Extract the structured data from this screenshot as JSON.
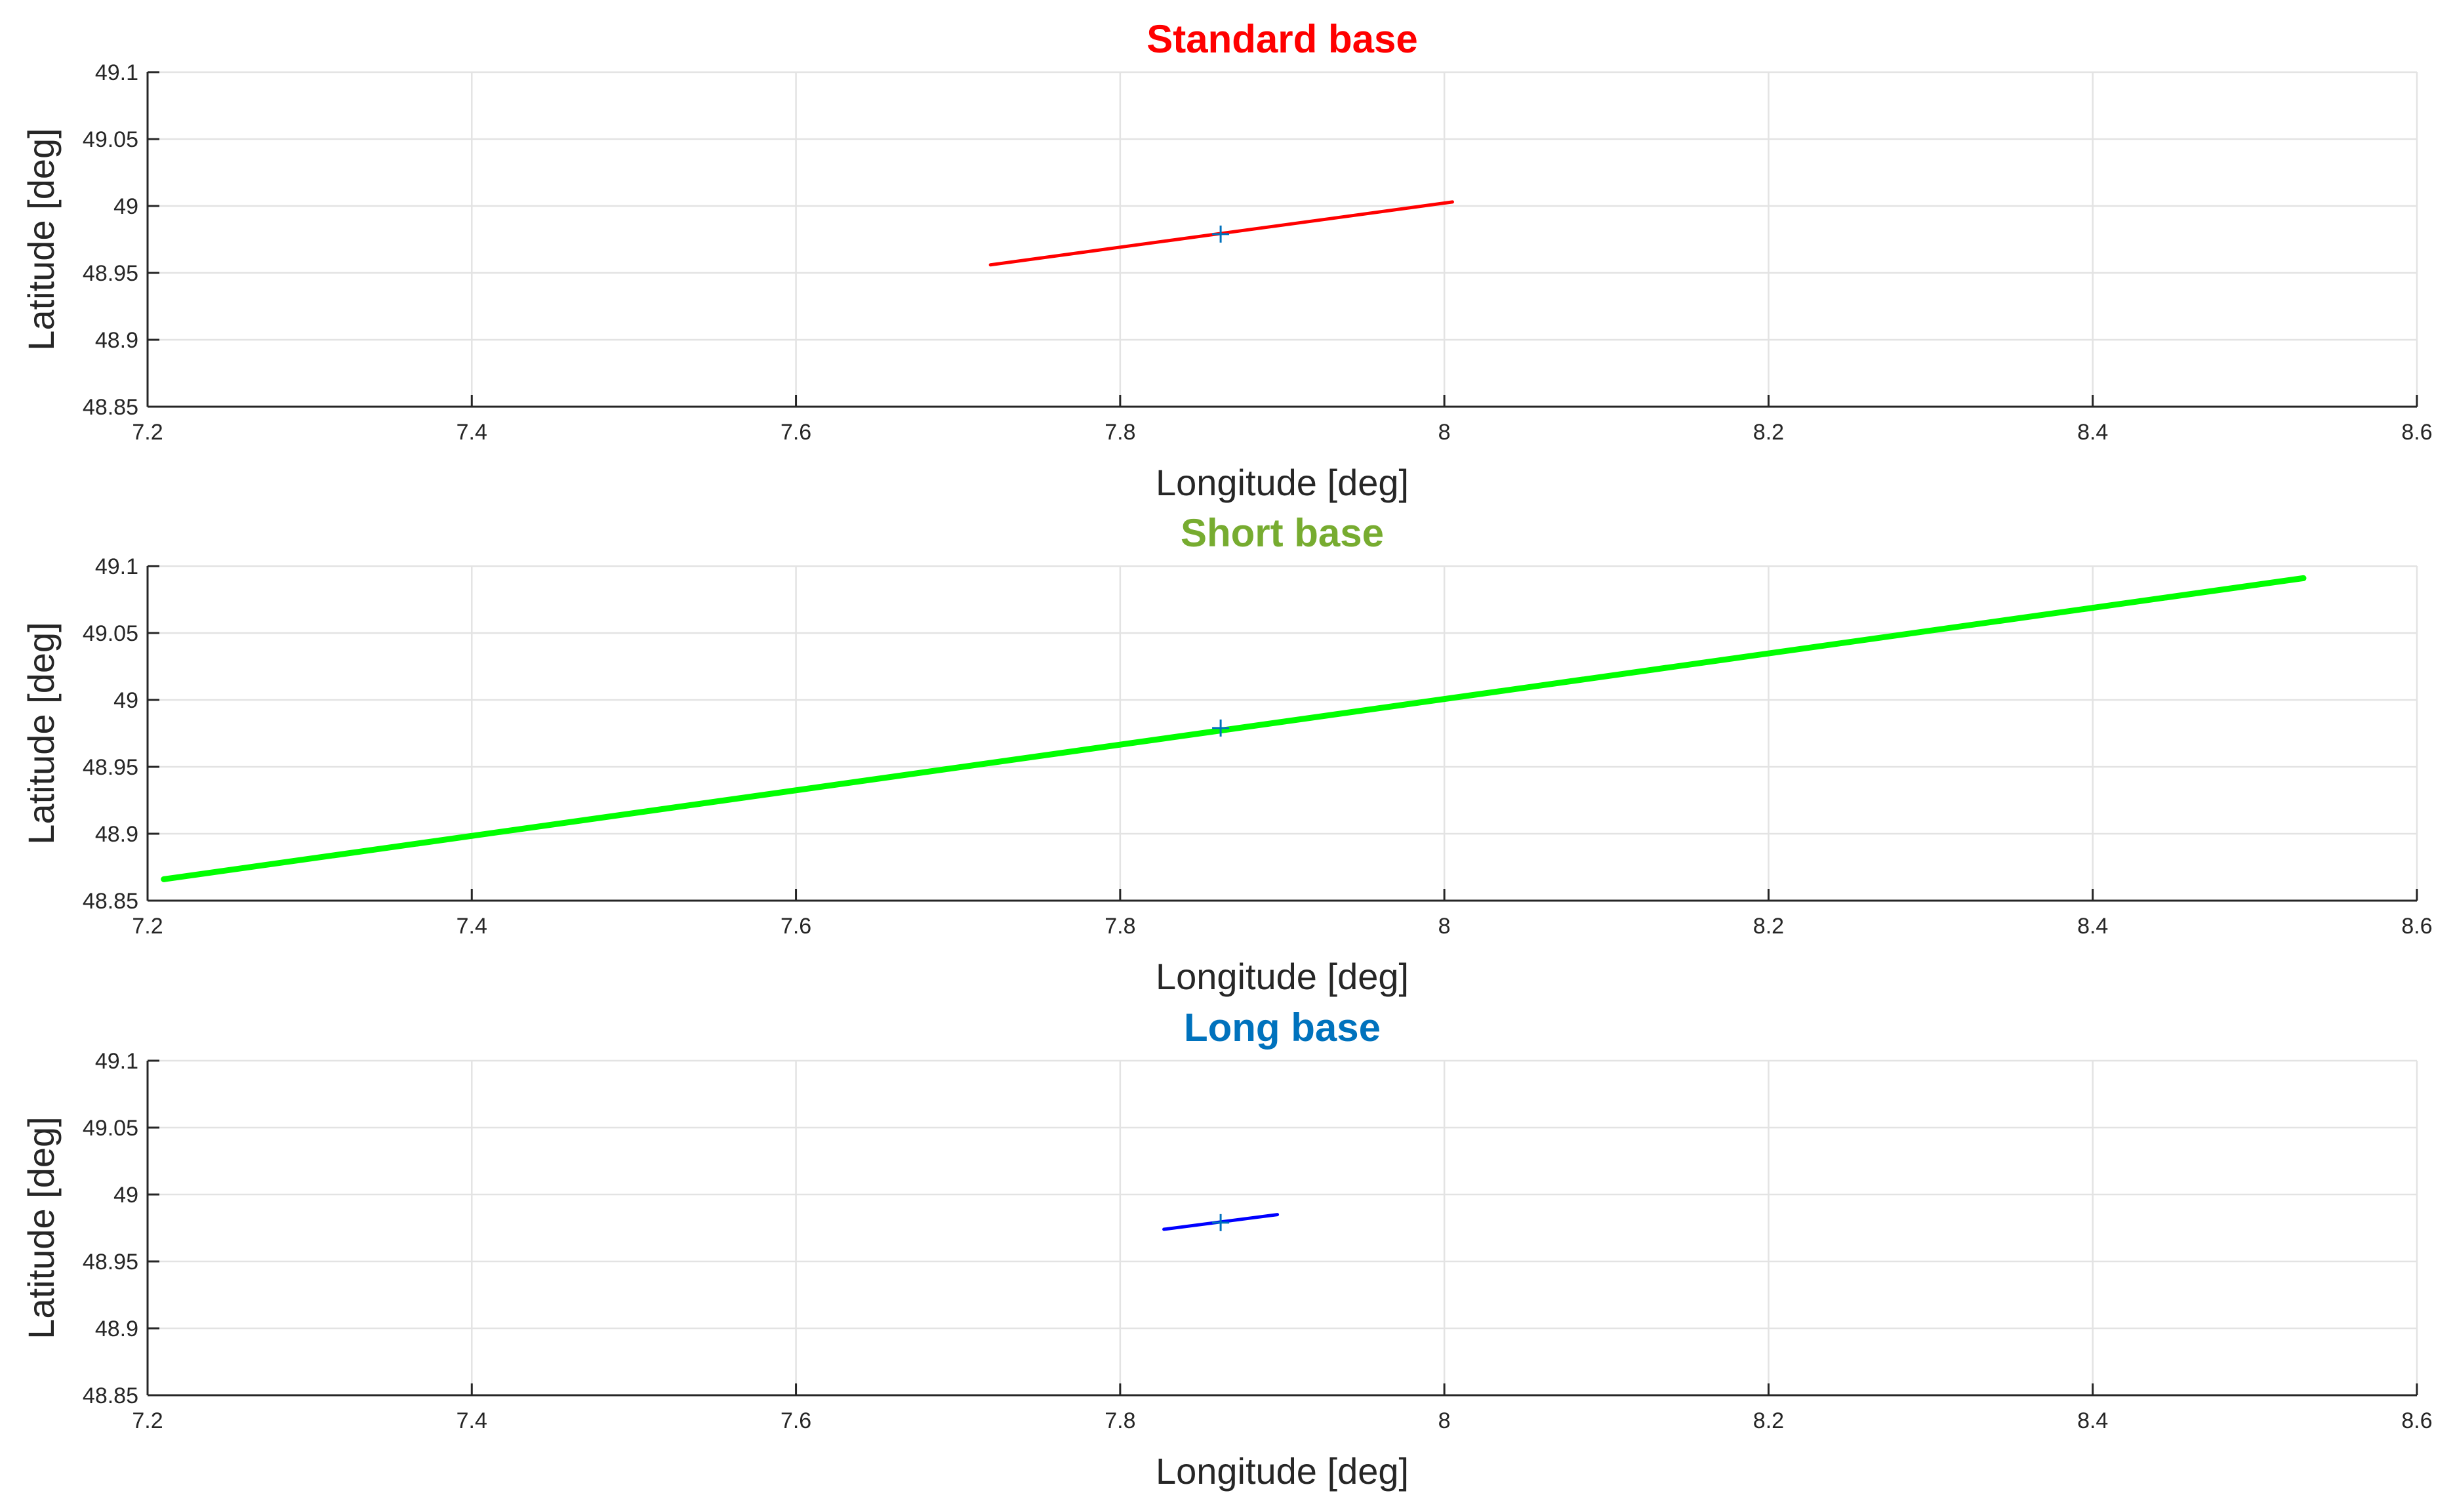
{
  "chart_data": [
    {
      "type": "line",
      "title": "Standard base",
      "title_color": "#ff0000",
      "xlabel": "Longitude [deg]",
      "ylabel": "Latitude [deg]",
      "xlim": [
        7.2,
        8.6
      ],
      "ylim": [
        48.85,
        49.1
      ],
      "xticks": [
        "7.2",
        "7.4",
        "7.6",
        "7.8",
        "8",
        "8.2",
        "8.4",
        "8.6"
      ],
      "yticks": [
        "48.85",
        "48.9",
        "48.95",
        "49",
        "49.05",
        "49.1"
      ],
      "grid": true,
      "series": [
        {
          "color": "#ff0000",
          "x": [
            7.72,
            8.005
          ],
          "y": [
            48.956,
            49.003
          ]
        }
      ],
      "marker": {
        "x": 7.862,
        "y": 48.979,
        "color": "#0072bd"
      }
    },
    {
      "type": "line",
      "title": "Short base",
      "title_color": "#77ac30",
      "xlabel": "Longitude [deg]",
      "ylabel": "Latitude [deg]",
      "xlim": [
        7.2,
        8.6
      ],
      "ylim": [
        48.85,
        49.1
      ],
      "xticks": [
        "7.2",
        "7.4",
        "7.6",
        "7.8",
        "8",
        "8.2",
        "8.4",
        "8.6"
      ],
      "yticks": [
        "48.85",
        "48.9",
        "48.95",
        "49",
        "49.05",
        "49.1"
      ],
      "grid": true,
      "series": [
        {
          "color": "#00ff00",
          "x": [
            7.21,
            8.53
          ],
          "y": [
            48.866,
            49.091
          ]
        }
      ],
      "marker": {
        "x": 7.862,
        "y": 48.979,
        "color": "#0072bd"
      }
    },
    {
      "type": "line",
      "title": "Long base",
      "title_color": "#0072bd",
      "xlabel": "Longitude [deg]",
      "ylabel": "Latitude [deg]",
      "xlim": [
        7.2,
        8.6
      ],
      "ylim": [
        48.85,
        49.1
      ],
      "xticks": [
        "7.2",
        "7.4",
        "7.6",
        "7.8",
        "8",
        "8.2",
        "8.4",
        "8.6"
      ],
      "yticks": [
        "48.85",
        "48.9",
        "48.95",
        "49",
        "49.05",
        "49.1"
      ],
      "grid": true,
      "series": [
        {
          "color": "#0000ff",
          "x": [
            7.827,
            7.897
          ],
          "y": [
            48.974,
            48.985
          ]
        }
      ],
      "marker": {
        "x": 7.862,
        "y": 48.979,
        "color": "#0072bd"
      }
    }
  ]
}
